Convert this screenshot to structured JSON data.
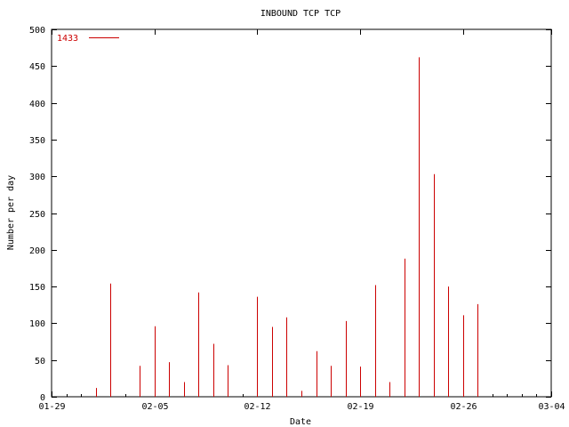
{
  "chart_data": {
    "type": "bar",
    "title": "INBOUND TCP TCP",
    "xlabel": "Date",
    "ylabel": "Number per day",
    "ylim": [
      0,
      500
    ],
    "yticks": [
      0,
      50,
      100,
      150,
      200,
      250,
      300,
      350,
      400,
      450,
      500
    ],
    "xlim": [
      "2011-01-29",
      "2011-03-04"
    ],
    "xticks": [
      {
        "date": "2011-01-29",
        "label": "01-29"
      },
      {
        "date": "2011-02-05",
        "label": "02-05"
      },
      {
        "date": "2011-02-12",
        "label": "02-12"
      },
      {
        "date": "2011-02-19",
        "label": "02-19"
      },
      {
        "date": "2011-02-26",
        "label": "02-26"
      },
      {
        "date": "2011-03-04",
        "label": "03-04"
      }
    ],
    "grid": false,
    "legend_position": "top-left",
    "series": [
      {
        "name": "1433",
        "color": "#cc0000",
        "points": [
          {
            "x": "2011-02-01",
            "y": 12
          },
          {
            "x": "2011-02-02",
            "y": 154
          },
          {
            "x": "2011-02-04",
            "y": 42
          },
          {
            "x": "2011-02-05",
            "y": 96
          },
          {
            "x": "2011-02-06",
            "y": 47
          },
          {
            "x": "2011-02-07",
            "y": 20
          },
          {
            "x": "2011-02-08",
            "y": 142
          },
          {
            "x": "2011-02-09",
            "y": 72
          },
          {
            "x": "2011-02-10",
            "y": 43
          },
          {
            "x": "2011-02-12",
            "y": 136
          },
          {
            "x": "2011-02-13",
            "y": 95
          },
          {
            "x": "2011-02-14",
            "y": 108
          },
          {
            "x": "2011-02-15",
            "y": 8
          },
          {
            "x": "2011-02-16",
            "y": 62
          },
          {
            "x": "2011-02-17",
            "y": 42
          },
          {
            "x": "2011-02-18",
            "y": 103
          },
          {
            "x": "2011-02-19",
            "y": 41
          },
          {
            "x": "2011-02-20",
            "y": 152
          },
          {
            "x": "2011-02-21",
            "y": 20
          },
          {
            "x": "2011-02-22",
            "y": 188
          },
          {
            "x": "2011-02-23",
            "y": 462
          },
          {
            "x": "2011-02-24",
            "y": 303
          },
          {
            "x": "2011-02-25",
            "y": 150
          },
          {
            "x": "2011-02-26",
            "y": 111
          },
          {
            "x": "2011-02-27",
            "y": 126
          }
        ]
      }
    ]
  }
}
